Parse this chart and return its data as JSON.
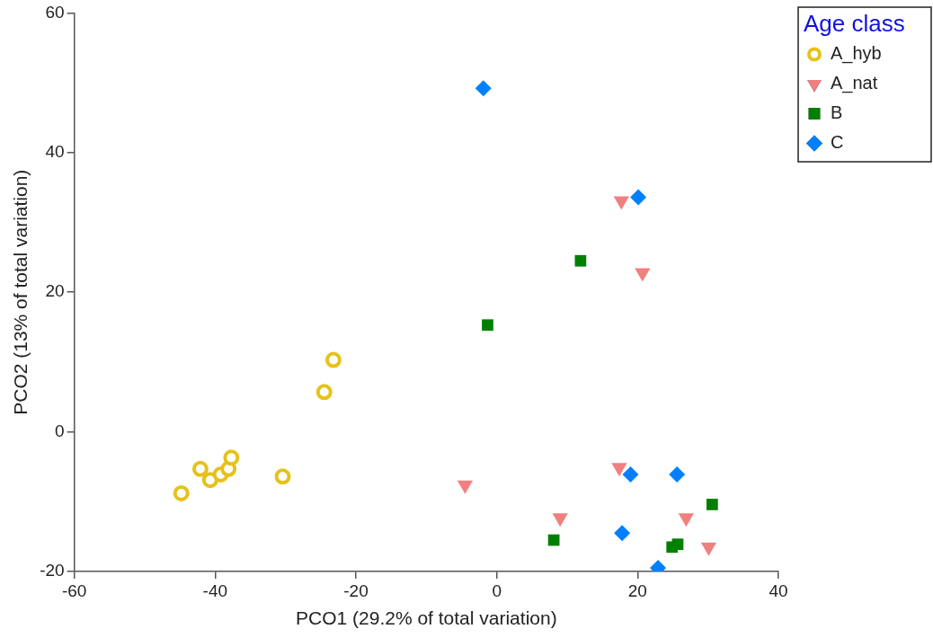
{
  "chart_data": {
    "type": "scatter",
    "xlabel": "PCO1 (29.2% of total variation)",
    "ylabel": "PCO2 (13% of total variation)",
    "legend_title": "Age class",
    "legend": "top right",
    "grid": false,
    "xlim": [
      -60,
      40
    ],
    "xticks": [
      -60,
      -40,
      -20,
      0,
      20,
      40
    ],
    "ylim": [
      -20,
      60
    ],
    "yticks": [
      -20,
      0,
      20,
      40,
      60
    ],
    "series": [
      {
        "name": "A_hyb",
        "color": "#e6c21a",
        "marker": "circle",
        "x": [
          -44.8,
          -42.1,
          -40.7,
          -39.2,
          -38.1,
          -37.7,
          -30.4,
          -24.5,
          -23.2
        ],
        "values": [
          -8.8,
          -5.3,
          -6.9,
          -6.1,
          -5.3,
          -3.7,
          -6.4,
          5.7,
          10.3
        ]
      },
      {
        "name": "A_nat",
        "color": "#f08080",
        "marker": "triangle",
        "x": [
          -4.5,
          9.0,
          17.4,
          26.9,
          30.1,
          17.7,
          20.7
        ],
        "values": [
          -7.6,
          -12.3,
          -5.1,
          -12.3,
          -16.5,
          33.1,
          22.8
        ]
      },
      {
        "name": "B",
        "color": "#008000",
        "marker": "square",
        "x": [
          11.9,
          -1.3,
          8.1,
          30.6,
          24.9,
          25.7
        ],
        "values": [
          24.5,
          15.3,
          -15.5,
          -10.4,
          -16.5,
          -16.1
        ]
      },
      {
        "name": "C",
        "color": "#0080ff",
        "marker": "diamond",
        "x": [
          -1.9,
          20.1,
          19.0,
          25.6,
          17.8,
          22.9
        ],
        "values": [
          49.2,
          33.6,
          -6.1,
          -6.1,
          -14.5,
          -19.5
        ]
      }
    ]
  }
}
